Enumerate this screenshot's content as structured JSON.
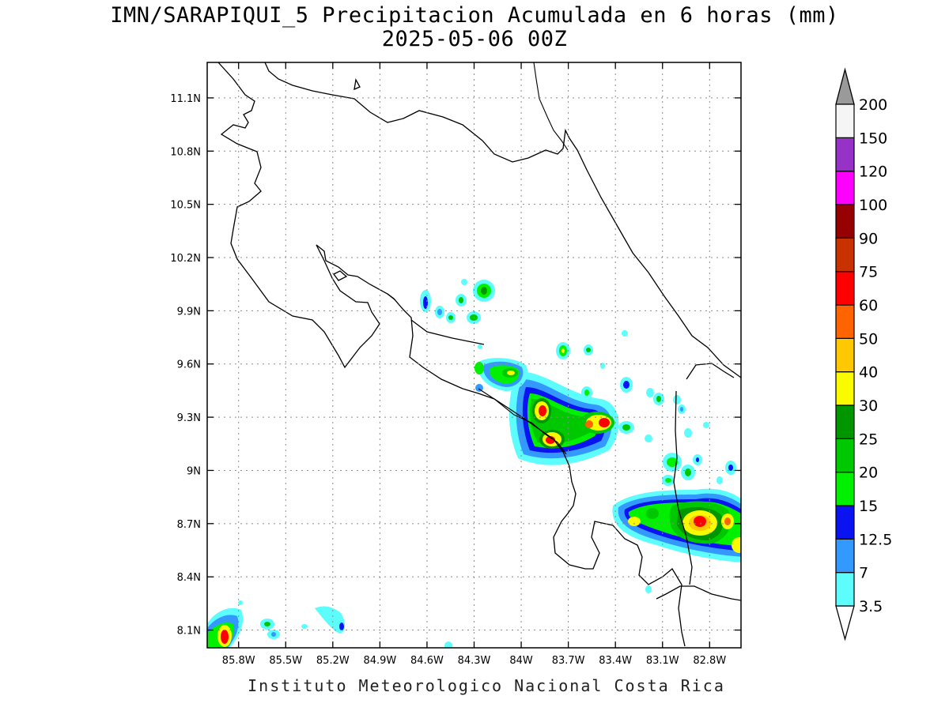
{
  "title": {
    "line1": "IMN/SARAPIQUI_5 Precipitacion Acumulada en 6 horas (mm)",
    "line2": "2025-05-06 00Z"
  },
  "footer": "Instituto Meteorologico Nacional Costa Rica",
  "map": {
    "lon_range": [
      -86.0,
      -82.6
    ],
    "lat_range": [
      8.0,
      11.3
    ],
    "x_ticks": [
      "85.8W",
      "85.5W",
      "85.2W",
      "84.9W",
      "84.6W",
      "84.3W",
      "84W",
      "83.7W",
      "83.4W",
      "83.1W",
      "82.8W"
    ],
    "y_ticks": [
      "11.1N",
      "10.8N",
      "10.5N",
      "10.2N",
      "9.9N",
      "9.6N",
      "9.3N",
      "9N",
      "8.7N",
      "8.4N",
      "8.1N"
    ],
    "grid": true
  },
  "colorbar": {
    "labels": [
      "3.5",
      "7",
      "12.5",
      "15",
      "20",
      "25",
      "30",
      "40",
      "50",
      "60",
      "75",
      "90",
      "100",
      "120",
      "150",
      "200"
    ],
    "colors": [
      "#5dfdfd",
      "#3399ff",
      "#0a14f0",
      "#00f000",
      "#00c800",
      "#009600",
      "#fafa00",
      "#ffc800",
      "#ff6400",
      "#ff0000",
      "#c83200",
      "#960000",
      "#ff00ff",
      "#9632c8",
      "#f5f5f5"
    ],
    "over_color": "#9a9a9a",
    "under_color": "#ffffff"
  }
}
